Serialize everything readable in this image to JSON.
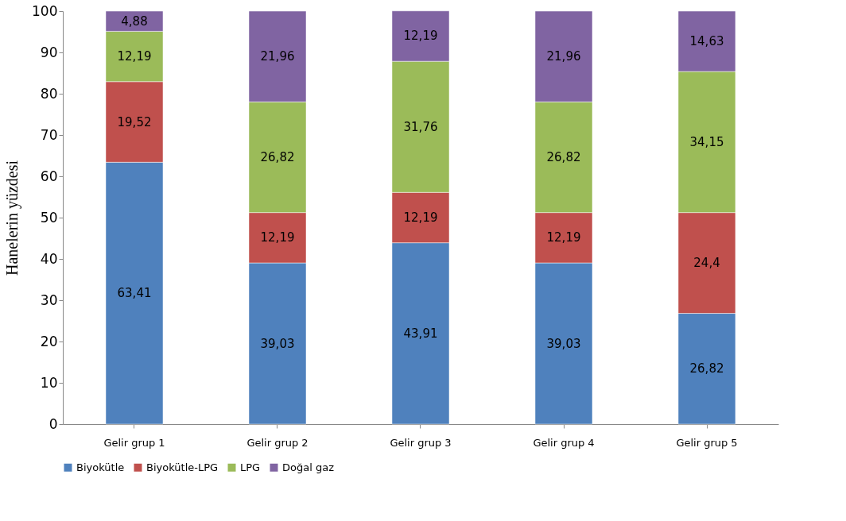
{
  "chart_data": {
    "type": "bar",
    "stacked": true,
    "ylabel": "Hanelerin yüzdesi",
    "categories": [
      "Gelir grup 1",
      "Gelir grup 2",
      "Gelir grup 3",
      "Gelir grup 4",
      "Gelir grup 5"
    ],
    "ylim": [
      0,
      100
    ],
    "yticks": [
      0,
      10,
      20,
      30,
      40,
      50,
      60,
      70,
      80,
      90,
      100
    ],
    "grid": false,
    "legend": "bottom",
    "series": [
      {
        "name": "Biyokütle",
        "color": "#4f81bd",
        "values": [
          63.41,
          39.03,
          43.91,
          39.03,
          26.82
        ],
        "value_labels": [
          "63,41",
          "39,03",
          "43,91",
          "39,03",
          "26,82"
        ]
      },
      {
        "name": "Biyokütle-LPG",
        "color": "#c0504d",
        "values": [
          19.52,
          12.19,
          12.19,
          12.19,
          24.4
        ],
        "value_labels": [
          "19,52",
          "12,19",
          "12,19",
          "12,19",
          "24,4"
        ]
      },
      {
        "name": "LPG",
        "color": "#9bbb59",
        "values": [
          12.19,
          26.82,
          31.76,
          26.82,
          34.15
        ],
        "value_labels": [
          "12,19",
          "26,82",
          "31,76",
          "26,82",
          "34,15"
        ]
      },
      {
        "name": "Doğal gaz",
        "color": "#8064a2",
        "values": [
          4.88,
          21.96,
          12.19,
          21.96,
          14.63
        ],
        "value_labels": [
          "4,88",
          "21,96",
          "12,19",
          "21,96",
          "14,63"
        ]
      }
    ]
  }
}
